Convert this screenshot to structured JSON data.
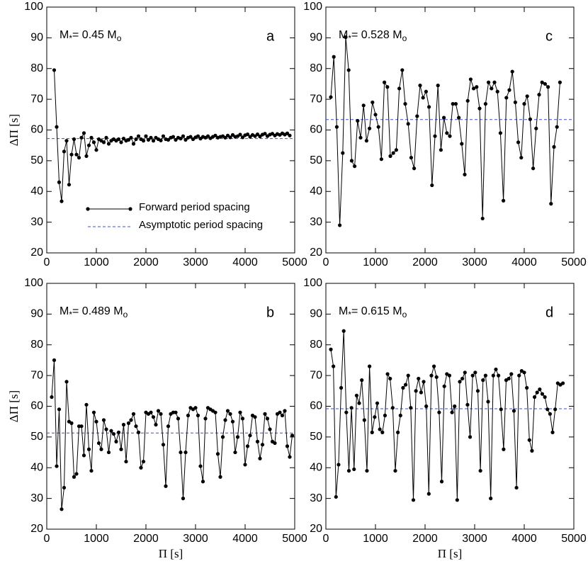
{
  "chart_data": [
    {
      "type": "line",
      "panel": "a",
      "annotation": [
        "M",
        "*",
        "= 0.45 M",
        "o"
      ],
      "ylabel": "ΔΠ [s]",
      "xlim": [
        0,
        5000
      ],
      "ylim": [
        20,
        100
      ],
      "xticks": [
        0,
        1000,
        2000,
        3000,
        4000,
        5000
      ],
      "yticks": [
        20,
        30,
        40,
        50,
        60,
        70,
        80,
        90,
        100
      ],
      "series": [
        {
          "name": "Forward period spacing",
          "color": "#000000",
          "x": [
            150,
            200,
            250,
            300,
            350,
            400,
            450,
            500,
            550,
            600,
            650,
            700,
            750,
            800,
            850,
            900,
            950,
            1000,
            1050,
            1100,
            1150,
            1200,
            1250,
            1300,
            1350,
            1400,
            1450,
            1500,
            1550,
            1600,
            1650,
            1700,
            1750,
            1800,
            1850,
            1900,
            1950,
            2000,
            2050,
            2100,
            2150,
            2200,
            2250,
            2300,
            2350,
            2400,
            2450,
            2500,
            2550,
            2600,
            2650,
            2700,
            2750,
            2800,
            2850,
            2900,
            2950,
            3000,
            3050,
            3100,
            3150,
            3200,
            3250,
            3300,
            3350,
            3400,
            3450,
            3500,
            3550,
            3600,
            3650,
            3700,
            3750,
            3800,
            3850,
            3900,
            3950,
            4000,
            4050,
            4100,
            4150,
            4200,
            4250,
            4300,
            4350,
            4400,
            4450,
            4500,
            4550,
            4600,
            4650,
            4700,
            4750,
            4800,
            4850,
            4900
          ],
          "values": [
            79.5,
            61,
            43,
            36.8,
            53,
            56.5,
            42.2,
            52,
            57,
            52,
            51,
            57.5,
            59,
            51.5,
            55,
            57.5,
            56,
            53.5,
            57,
            56.5,
            56,
            57.5,
            55.5,
            56.5,
            57,
            56.5,
            57,
            56,
            57.2,
            56.5,
            56.8,
            57.5,
            55.5,
            57,
            58,
            57,
            56.5,
            58,
            56.8,
            57.5,
            56.5,
            57.5,
            57,
            56.6,
            58,
            57,
            56.8,
            57.5,
            57.8,
            56.8,
            57.5,
            57.2,
            58,
            56.8,
            57.5,
            57.8,
            57,
            57.6,
            58,
            57.2,
            57.8,
            57.5,
            58,
            57.3,
            57.8,
            58.2,
            57.5,
            57.8,
            58,
            57.5,
            58.2,
            57.6,
            58.4,
            57.8,
            58,
            58.5,
            57.6,
            58.3,
            58.6,
            57.8,
            58.4,
            58,
            58.6,
            57.9,
            58.5,
            58.8,
            58,
            58.5,
            58.8,
            58.2,
            58.7,
            58.4,
            58.9,
            58.5,
            58.9,
            58.2
          ]
        }
      ],
      "asymptote": {
        "name": "Asymptotic period spacing",
        "value": 57.2,
        "color": "#3a4fd6"
      }
    },
    {
      "type": "line",
      "panel": "b",
      "annotation": [
        "M",
        "*",
        "= 0.489 M",
        "o"
      ],
      "ylabel": "ΔΠ [s]",
      "xlabel": "Π [s]",
      "xlim": [
        0,
        5000
      ],
      "ylim": [
        20,
        100
      ],
      "xticks": [
        0,
        1000,
        2000,
        3000,
        4000,
        5000
      ],
      "yticks": [
        20,
        30,
        40,
        50,
        60,
        70,
        80,
        90,
        100
      ],
      "series": [
        {
          "color": "#000000",
          "x": [
            100,
            150,
            200,
            250,
            300,
            350,
            400,
            450,
            500,
            550,
            600,
            650,
            700,
            750,
            800,
            850,
            900,
            950,
            1000,
            1050,
            1100,
            1150,
            1200,
            1250,
            1300,
            1350,
            1400,
            1450,
            1500,
            1550,
            1600,
            1650,
            1700,
            1750,
            1800,
            1850,
            1900,
            1950,
            2000,
            2050,
            2100,
            2150,
            2200,
            2250,
            2300,
            2350,
            2400,
            2450,
            2500,
            2550,
            2600,
            2650,
            2700,
            2750,
            2800,
            2850,
            2900,
            2950,
            3000,
            3050,
            3100,
            3150,
            3200,
            3250,
            3300,
            3350,
            3400,
            3450,
            3500,
            3550,
            3600,
            3650,
            3700,
            3750,
            3800,
            3850,
            3900,
            3950,
            4000,
            4050,
            4100,
            4150,
            4200,
            4250,
            4300,
            4350,
            4400,
            4450,
            4500,
            4550,
            4600,
            4650,
            4700,
            4750,
            4800,
            4850,
            4900,
            4950
          ],
          "values": [
            63,
            75,
            40.5,
            59,
            26.5,
            33.5,
            68,
            55,
            54.5,
            37,
            38,
            53.5,
            53.5,
            44,
            60.5,
            46,
            39,
            58,
            55,
            48,
            46,
            55.5,
            52.5,
            45,
            52,
            51,
            48.5,
            51.5,
            46,
            54,
            42,
            54.5,
            55.5,
            57.5,
            53.5,
            51.5,
            40,
            42,
            58,
            57.5,
            58,
            56.5,
            54,
            58.5,
            57.5,
            47.5,
            34,
            53.5,
            57.5,
            58,
            58,
            56,
            45,
            30,
            45,
            57,
            59.5,
            59,
            59.5,
            57,
            40.5,
            35.5,
            56,
            59.5,
            59,
            58.5,
            58,
            44.5,
            37,
            50,
            55.5,
            58.5,
            57.5,
            55,
            45,
            50,
            58,
            56,
            41,
            47,
            50.5,
            57,
            56.5,
            48.5,
            43,
            47.5,
            57.5,
            56,
            52.5,
            48.5,
            48,
            57.5,
            58,
            57,
            58.5,
            47,
            43.5,
            50.5
          ]
        }
      ],
      "asymptote": {
        "value": 51.3,
        "color": "#3a4fd6"
      }
    },
    {
      "type": "line",
      "panel": "c",
      "annotation": [
        "M",
        "*",
        "= 0.528 M",
        "o"
      ],
      "xlim": [
        0,
        5000
      ],
      "ylim": [
        20,
        100
      ],
      "xticks": [
        0,
        1000,
        2000,
        3000,
        4000,
        5000
      ],
      "yticks": [
        20,
        30,
        40,
        50,
        60,
        70,
        80,
        90,
        100
      ],
      "series": [
        {
          "color": "#000000",
          "x": [
            100,
            160,
            220,
            280,
            340,
            400,
            460,
            520,
            580,
            640,
            700,
            760,
            820,
            880,
            940,
            1000,
            1060,
            1120,
            1180,
            1240,
            1300,
            1360,
            1420,
            1480,
            1540,
            1600,
            1660,
            1720,
            1780,
            1840,
            1900,
            1960,
            2020,
            2080,
            2140,
            2200,
            2260,
            2320,
            2380,
            2440,
            2500,
            2560,
            2620,
            2680,
            2740,
            2800,
            2860,
            2920,
            2980,
            3040,
            3100,
            3160,
            3220,
            3280,
            3340,
            3400,
            3460,
            3520,
            3580,
            3640,
            3700,
            3760,
            3820,
            3880,
            3940,
            4000,
            4060,
            4120,
            4180,
            4240,
            4300,
            4360,
            4420,
            4480,
            4540,
            4600,
            4660,
            4720
          ],
          "values": [
            70.7,
            83.8,
            61,
            29,
            52.5,
            90.2,
            79.5,
            50,
            48.2,
            63,
            57.5,
            68,
            56.5,
            60.5,
            69,
            65,
            61,
            50.5,
            75.5,
            74,
            51.5,
            52.5,
            53.5,
            73.5,
            79.5,
            68.5,
            62,
            51,
            47.5,
            64.5,
            74.5,
            70.5,
            72.5,
            67.5,
            42,
            58,
            74.5,
            53.5,
            64,
            59,
            58,
            68.5,
            68.5,
            64,
            55.5,
            45.5,
            69.5,
            76.5,
            73.5,
            74,
            67,
            31.2,
            68.5,
            75.5,
            73.5,
            75.5,
            72.5,
            59,
            37,
            70.5,
            73,
            79,
            69,
            56,
            51,
            68.5,
            71,
            63.5,
            47.5,
            60.5,
            71.5,
            75.5,
            75,
            74,
            36,
            54.5,
            61,
            75.5
          ]
        }
      ],
      "asymptote": {
        "value": 63.4,
        "color": "#3a4fd6"
      }
    },
    {
      "type": "line",
      "panel": "d",
      "annotation": [
        "M",
        "*",
        "= 0.615 M",
        "o"
      ],
      "xlabel": "Π [s]",
      "xlim": [
        0,
        5000
      ],
      "ylim": [
        20,
        100
      ],
      "xticks": [
        0,
        1000,
        2000,
        3000,
        4000,
        5000
      ],
      "yticks": [
        20,
        30,
        40,
        50,
        60,
        70,
        80,
        90,
        100
      ],
      "series": [
        {
          "color": "#000000",
          "x": [
            100,
            152,
            204,
            256,
            308,
            360,
            412,
            464,
            516,
            568,
            620,
            672,
            724,
            776,
            828,
            880,
            932,
            984,
            1036,
            1088,
            1140,
            1192,
            1244,
            1296,
            1348,
            1400,
            1452,
            1504,
            1556,
            1608,
            1660,
            1712,
            1764,
            1816,
            1868,
            1920,
            1972,
            2024,
            2076,
            2128,
            2180,
            2232,
            2284,
            2336,
            2388,
            2440,
            2492,
            2544,
            2596,
            2648,
            2700,
            2752,
            2804,
            2856,
            2908,
            2960,
            3012,
            3064,
            3116,
            3168,
            3220,
            3272,
            3324,
            3376,
            3428,
            3480,
            3532,
            3584,
            3636,
            3688,
            3740,
            3792,
            3844,
            3896,
            3948,
            4000,
            4052,
            4104,
            4156,
            4208,
            4260,
            4312,
            4364,
            4416,
            4468,
            4520,
            4572,
            4624,
            4676,
            4728,
            4780
          ],
          "values": [
            78.5,
            73,
            30.5,
            41,
            66,
            84.5,
            58,
            39,
            59.5,
            39.5,
            63.5,
            61,
            68.5,
            55.5,
            39,
            73,
            51.5,
            56.5,
            61,
            52.5,
            51.5,
            57,
            70.5,
            69,
            59.5,
            39,
            51.5,
            57,
            66,
            67,
            70,
            59.5,
            29.5,
            65,
            69,
            64.5,
            68,
            60,
            31.5,
            70,
            73,
            69.5,
            58,
            35.5,
            66.5,
            70.5,
            70,
            58,
            60,
            29.5,
            68,
            69,
            71,
            60.5,
            50,
            70,
            71,
            65,
            39,
            68.5,
            70,
            61.5,
            30,
            70,
            72,
            70,
            59,
            46,
            68.5,
            69,
            70.5,
            58.5,
            33.5,
            70,
            71.5,
            71,
            66,
            49,
            45.5,
            63,
            64.5,
            65.5,
            64,
            63,
            59,
            57.5,
            51.5,
            59,
            67.5,
            67,
            67.5
          ]
        }
      ],
      "asymptote": {
        "value": 59.2,
        "color": "#3a4fd6"
      }
    }
  ]
}
